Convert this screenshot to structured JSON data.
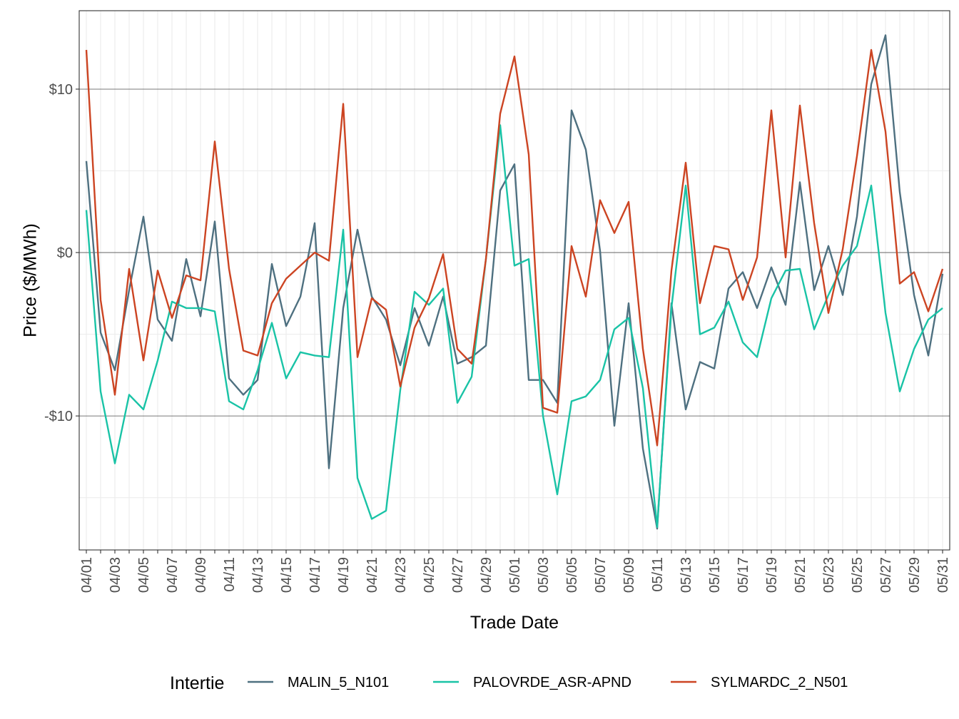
{
  "chart_data": {
    "type": "line",
    "xlabel": "Trade Date",
    "ylabel": "Price ($/MWh)",
    "ylim": [
      -18.2,
      14.8
    ],
    "y_ticks": [
      {
        "value": 10,
        "label": "$10"
      },
      {
        "value": 0,
        "label": "$0"
      },
      {
        "value": -10,
        "label": "-$10"
      }
    ],
    "grid": true,
    "legend": {
      "title": "Intertie",
      "position": "bottom"
    },
    "x": [
      "04/01",
      "04/02",
      "04/03",
      "04/04",
      "04/05",
      "04/06",
      "04/07",
      "04/08",
      "04/09",
      "04/10",
      "04/11",
      "04/12",
      "04/13",
      "04/14",
      "04/15",
      "04/16",
      "04/17",
      "04/18",
      "04/19",
      "04/20",
      "04/21",
      "04/22",
      "04/23",
      "04/24",
      "04/25",
      "04/26",
      "04/27",
      "04/28",
      "04/29",
      "04/30",
      "05/01",
      "05/02",
      "05/03",
      "05/04",
      "05/05",
      "05/06",
      "05/07",
      "05/08",
      "05/09",
      "05/10",
      "05/11",
      "05/12",
      "05/13",
      "05/14",
      "05/15",
      "05/16",
      "05/17",
      "05/18",
      "05/19",
      "05/20",
      "05/21",
      "05/22",
      "05/23",
      "05/24",
      "05/25",
      "05/26",
      "05/27",
      "05/28",
      "05/29",
      "05/30",
      "05/31"
    ],
    "x_tick_labels": [
      "04/01",
      "04/03",
      "04/05",
      "04/07",
      "04/09",
      "04/11",
      "04/13",
      "04/15",
      "04/17",
      "04/19",
      "04/21",
      "04/23",
      "04/25",
      "04/27",
      "04/29",
      "05/01",
      "05/03",
      "05/05",
      "05/07",
      "05/09",
      "05/11",
      "05/13",
      "05/15",
      "05/17",
      "05/19",
      "05/21",
      "05/23",
      "05/25",
      "05/27",
      "05/29",
      "05/31"
    ],
    "series": [
      {
        "name": "MALIN_5_N101",
        "color": "#4e7080",
        "values": [
          5.6,
          -4.9,
          -7.2,
          -2.3,
          2.2,
          -4.1,
          -5.4,
          -0.4,
          -3.9,
          1.9,
          -7.7,
          -8.7,
          -7.8,
          -0.7,
          -4.5,
          -2.7,
          1.8,
          -13.2,
          -3.4,
          1.4,
          -2.7,
          -4.1,
          -6.9,
          -3.4,
          -5.7,
          -2.7,
          -6.8,
          -6.4,
          -5.7,
          3.8,
          5.4,
          -7.8,
          -7.8,
          -9.2,
          8.7,
          6.3,
          0.1,
          -10.6,
          -3.1,
          -12.0,
          -16.9,
          -3.1,
          -9.6,
          -6.7,
          -7.1,
          -2.2,
          -1.2,
          -3.4,
          -0.9,
          -3.2,
          4.3,
          -2.3,
          0.4,
          -2.6,
          2.2,
          10.3,
          13.3,
          3.7,
          -2.6,
          -6.3,
          -1.3
        ]
      },
      {
        "name": "PALOVRDE_ASR-APND",
        "color": "#19c3a6",
        "values": [
          2.6,
          -8.5,
          -12.9,
          -8.7,
          -9.6,
          -6.6,
          -3.0,
          -3.4,
          -3.4,
          -3.6,
          -9.1,
          -9.6,
          -7.2,
          -4.3,
          -7.7,
          -6.1,
          -6.3,
          -6.4,
          1.4,
          -13.8,
          -16.3,
          -15.8,
          -8.4,
          -2.4,
          -3.2,
          -2.2,
          -9.2,
          -7.6,
          -0.4,
          7.8,
          -0.8,
          -0.4,
          -10.0,
          -14.8,
          -9.1,
          -8.8,
          -7.8,
          -4.7,
          -4.0,
          -8.3,
          -16.8,
          -3.4,
          4.1,
          -5.0,
          -4.6,
          -3.0,
          -5.5,
          -6.4,
          -2.8,
          -1.1,
          -1.0,
          -4.7,
          -2.6,
          -0.8,
          0.4,
          4.1,
          -3.7,
          -8.5,
          -5.9,
          -4.1,
          -3.4
        ]
      },
      {
        "name": "SYLMARDC_2_N501",
        "color": "#cc4422",
        "values": [
          12.4,
          -2.9,
          -8.7,
          -1.0,
          -6.6,
          -1.1,
          -4.0,
          -1.4,
          -1.7,
          6.8,
          -1.0,
          -6.0,
          -6.3,
          -3.1,
          -1.6,
          -0.8,
          0.0,
          -0.5,
          9.1,
          -6.4,
          -2.8,
          -3.5,
          -8.2,
          -4.6,
          -2.8,
          -0.1,
          -5.9,
          -6.8,
          -0.4,
          8.5,
          12.0,
          6.0,
          -9.5,
          -9.8,
          0.4,
          -2.7,
          3.2,
          1.2,
          3.1,
          -5.9,
          -11.8,
          -1.1,
          5.5,
          -3.1,
          0.4,
          0.2,
          -2.9,
          -0.3,
          8.7,
          -0.3,
          9.0,
          1.8,
          -3.7,
          0.2,
          5.9,
          12.4,
          7.4,
          -1.9,
          -1.2,
          -3.6,
          -1.0
        ]
      }
    ]
  }
}
